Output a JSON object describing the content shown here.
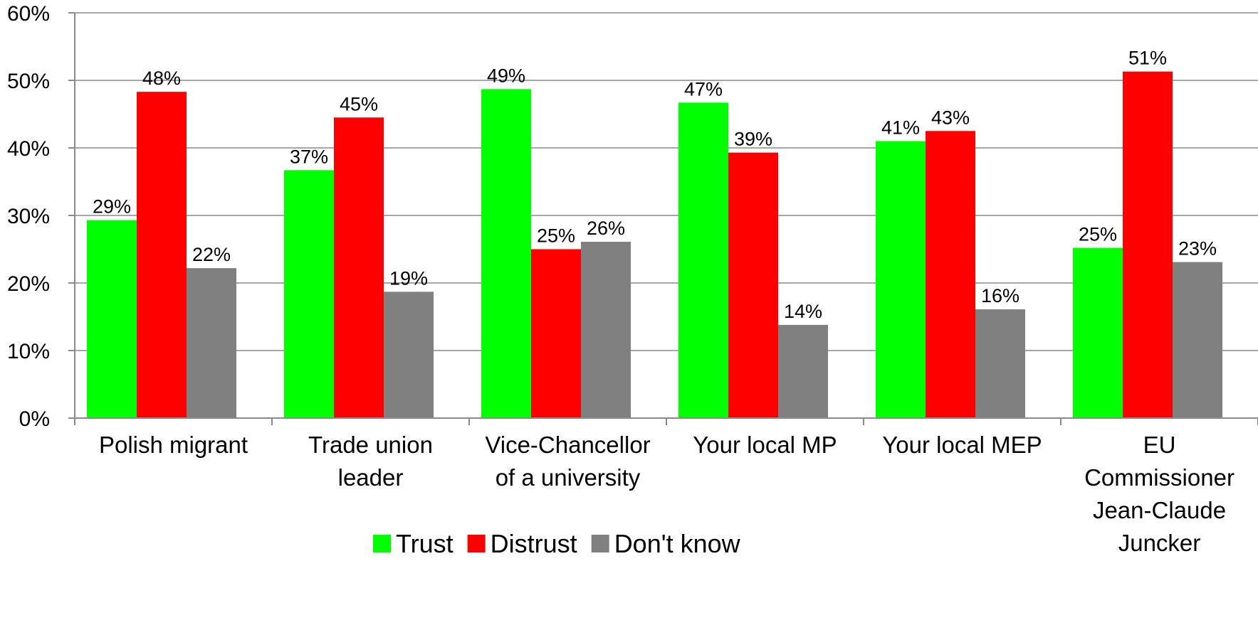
{
  "chart_data": {
    "type": "bar",
    "categories": [
      [
        "Polish migrant"
      ],
      [
        "Trade union",
        "leader"
      ],
      [
        "Vice-Chancellor",
        "of a university"
      ],
      [
        "Your local MP"
      ],
      [
        "Your local MEP"
      ],
      [
        "EU",
        "Commissioner",
        "Jean-Claude",
        "Juncker"
      ]
    ],
    "series": [
      {
        "name": "Trust",
        "color": "#00ff00",
        "values": [
          29.3,
          36.7,
          48.7,
          46.7,
          41.0,
          25.2
        ],
        "labels": [
          "29%",
          "37%",
          "49%",
          "47%",
          "41%",
          "25%"
        ]
      },
      {
        "name": "Distrust",
        "color": "#ff0000",
        "values": [
          48.3,
          44.5,
          25.0,
          39.3,
          42.5,
          51.3
        ],
        "labels": [
          "48%",
          "45%",
          "25%",
          "39%",
          "43%",
          "51%"
        ]
      },
      {
        "name": "Don't know",
        "color": "#808080",
        "values": [
          22.2,
          18.7,
          26.1,
          13.8,
          16.1,
          23.1
        ],
        "labels": [
          "22%",
          "19%",
          "26%",
          "14%",
          "16%",
          "23%"
        ]
      }
    ],
    "y_ticks": [
      "0%",
      "10%",
      "20%",
      "30%",
      "40%",
      "50%",
      "60%"
    ],
    "ylim": [
      0,
      60
    ],
    "grid": true,
    "legend_position": "bottom"
  }
}
